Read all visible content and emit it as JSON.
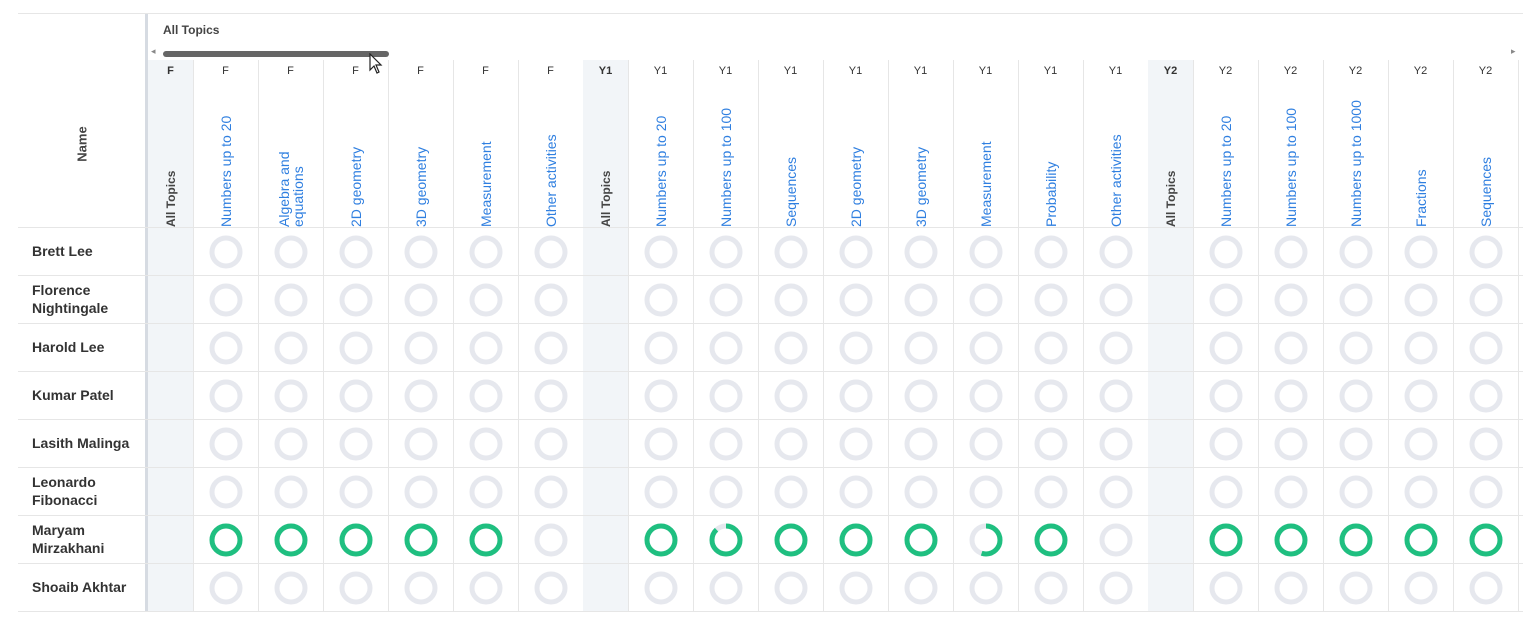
{
  "header": {
    "name_label": "Name",
    "section_title": "All Topics"
  },
  "columns": [
    {
      "grade": "F",
      "topic": "All Topics",
      "kind": "group"
    },
    {
      "grade": "F",
      "topic": "Numbers up to 20",
      "kind": "topic"
    },
    {
      "grade": "F",
      "topic": "Algebra and equations",
      "kind": "topic"
    },
    {
      "grade": "F",
      "topic": "2D geometry",
      "kind": "topic"
    },
    {
      "grade": "F",
      "topic": "3D geometry",
      "kind": "topic"
    },
    {
      "grade": "F",
      "topic": "Measurement",
      "kind": "topic"
    },
    {
      "grade": "F",
      "topic": "Other activities",
      "kind": "topic"
    },
    {
      "grade": "Y1",
      "topic": "All Topics",
      "kind": "group"
    },
    {
      "grade": "Y1",
      "topic": "Numbers up to 20",
      "kind": "topic"
    },
    {
      "grade": "Y1",
      "topic": "Numbers up to 100",
      "kind": "topic"
    },
    {
      "grade": "Y1",
      "topic": "Sequences",
      "kind": "topic"
    },
    {
      "grade": "Y1",
      "topic": "2D geometry",
      "kind": "topic"
    },
    {
      "grade": "Y1",
      "topic": "3D geometry",
      "kind": "topic"
    },
    {
      "grade": "Y1",
      "topic": "Measurement",
      "kind": "topic"
    },
    {
      "grade": "Y1",
      "topic": "Probability",
      "kind": "topic"
    },
    {
      "grade": "Y1",
      "topic": "Other activities",
      "kind": "topic"
    },
    {
      "grade": "Y2",
      "topic": "All Topics",
      "kind": "group"
    },
    {
      "grade": "Y2",
      "topic": "Numbers up to 20",
      "kind": "topic"
    },
    {
      "grade": "Y2",
      "topic": "Numbers up to 100",
      "kind": "topic"
    },
    {
      "grade": "Y2",
      "topic": "Numbers up to 1000",
      "kind": "topic"
    },
    {
      "grade": "Y2",
      "topic": "Fractions",
      "kind": "topic"
    },
    {
      "grade": "Y2",
      "topic": "Sequences",
      "kind": "topic"
    }
  ],
  "students": [
    {
      "name": "Brett Lee",
      "progress": [
        null,
        0,
        0,
        0,
        0,
        0,
        0,
        null,
        0,
        0,
        0,
        0,
        0,
        0,
        0,
        0,
        null,
        0,
        0,
        0,
        0,
        0
      ]
    },
    {
      "name": "Florence Nightingale",
      "progress": [
        null,
        0,
        0,
        0,
        0,
        0,
        0,
        null,
        0,
        0,
        0,
        0,
        0,
        0,
        0,
        0,
        null,
        0,
        0,
        0,
        0,
        0
      ]
    },
    {
      "name": "Harold Lee",
      "progress": [
        null,
        0,
        0,
        0,
        0,
        0,
        0,
        null,
        0,
        0,
        0,
        0,
        0,
        0,
        0,
        0,
        null,
        0,
        0,
        0,
        0,
        0
      ]
    },
    {
      "name": "Kumar Patel",
      "progress": [
        null,
        0,
        0,
        0,
        0,
        0,
        0,
        null,
        0,
        0,
        0,
        0,
        0,
        0,
        0,
        0,
        null,
        0,
        0,
        0,
        0,
        0
      ]
    },
    {
      "name": "Lasith Malinga",
      "progress": [
        null,
        0,
        0,
        0,
        0,
        0,
        0,
        null,
        0,
        0,
        0,
        0,
        0,
        0,
        0,
        0,
        null,
        0,
        0,
        0,
        0,
        0
      ]
    },
    {
      "name": "Leonardo Fibonacci",
      "progress": [
        null,
        0,
        0,
        0,
        0,
        0,
        0,
        null,
        0,
        0,
        0,
        0,
        0,
        0,
        0,
        0,
        null,
        0,
        0,
        0,
        0,
        0
      ]
    },
    {
      "name": "Maryam Mirzakhani",
      "progress": [
        null,
        1,
        1,
        1,
        1,
        1,
        0,
        null,
        1,
        0.88,
        1,
        1,
        1,
        0.55,
        1,
        0,
        null,
        1,
        1,
        1,
        1,
        1
      ]
    },
    {
      "name": "Shoaib Akhtar",
      "progress": [
        null,
        0,
        0,
        0,
        0,
        0,
        0,
        null,
        0,
        0,
        0,
        0,
        0,
        0,
        0,
        0,
        null,
        0,
        0,
        0,
        0,
        0
      ]
    }
  ],
  "colors": {
    "complete": "#1fbf80",
    "ring_track": "#e6e8ee",
    "topic_link": "#2f7fe0",
    "group_shade": "#f2f5f8"
  },
  "icons": {
    "scroll_left": "chevron-left-icon",
    "scroll_right": "chevron-right-icon",
    "pointer": "mouse-pointer-icon"
  }
}
